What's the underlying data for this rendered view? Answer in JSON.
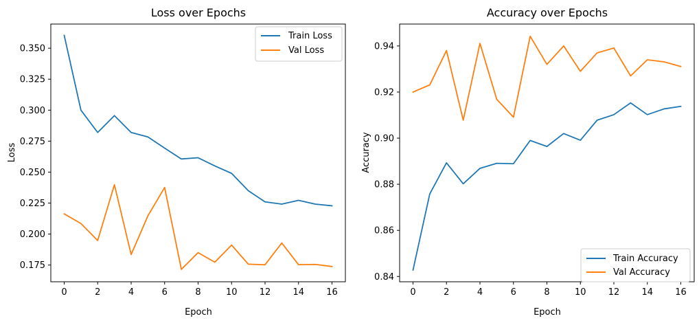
{
  "chart_data": [
    {
      "type": "line",
      "title": "Loss over Epochs",
      "xlabel": "Epoch",
      "ylabel": "Loss",
      "x": [
        0,
        1,
        2,
        3,
        4,
        5,
        6,
        7,
        8,
        9,
        10,
        11,
        12,
        13,
        14,
        15,
        16
      ],
      "xlim": [
        -0.8,
        16.8
      ],
      "ylim": [
        0.1615,
        0.3695
      ],
      "xticks": [
        0,
        2,
        4,
        6,
        8,
        10,
        12,
        14,
        16
      ],
      "xtick_labels": [
        "0",
        "2",
        "4",
        "6",
        "8",
        "10",
        "12",
        "14",
        "16"
      ],
      "yticks": [
        0.175,
        0.2,
        0.225,
        0.25,
        0.275,
        0.3,
        0.325,
        0.35
      ],
      "ytick_labels": [
        "0.175",
        "0.200",
        "0.225",
        "0.250",
        "0.275",
        "0.300",
        "0.325",
        "0.350"
      ],
      "grid": false,
      "legend_position": "upper-right",
      "series": [
        {
          "name": "Train Loss",
          "color": "#1f77b4",
          "values": [
            0.3604,
            0.3,
            0.282,
            0.2956,
            0.282,
            0.2784,
            0.2694,
            0.2606,
            0.2616,
            0.255,
            0.249,
            0.235,
            0.226,
            0.2242,
            0.2272,
            0.2242,
            0.2228
          ]
        },
        {
          "name": "Val Loss",
          "color": "#ff7f0e",
          "values": [
            0.2163,
            0.2085,
            0.1948,
            0.2398,
            0.1835,
            0.2147,
            0.2376,
            0.1715,
            0.185,
            0.1773,
            0.1911,
            0.1757,
            0.1752,
            0.1928,
            0.1753,
            0.1755,
            0.1738
          ]
        }
      ]
    },
    {
      "type": "line",
      "title": "Accuracy over Epochs",
      "xlabel": "Epoch",
      "ylabel": "Accuracy",
      "x": [
        0,
        1,
        2,
        3,
        4,
        5,
        6,
        7,
        8,
        9,
        10,
        11,
        12,
        13,
        14,
        15,
        16
      ],
      "xlim": [
        -0.8,
        16.8
      ],
      "ylim": [
        0.8377,
        0.9495
      ],
      "xticks": [
        0,
        2,
        4,
        6,
        8,
        10,
        12,
        14,
        16
      ],
      "xtick_labels": [
        "0",
        "2",
        "4",
        "6",
        "8",
        "10",
        "12",
        "14",
        "16"
      ],
      "yticks": [
        0.84,
        0.86,
        0.88,
        0.9,
        0.92,
        0.94
      ],
      "ytick_labels": [
        "0.84",
        "0.86",
        "0.88",
        "0.90",
        "0.92",
        "0.94"
      ],
      "grid": false,
      "legend_position": "lower-right",
      "series": [
        {
          "name": "Train Accuracy",
          "color": "#1f77b4",
          "values": [
            0.8428,
            0.8758,
            0.8893,
            0.8802,
            0.8869,
            0.8891,
            0.8889,
            0.899,
            0.8964,
            0.902,
            0.8991,
            0.9078,
            0.9102,
            0.9153,
            0.9102,
            0.9127,
            0.9138
          ]
        },
        {
          "name": "Val Accuracy",
          "color": "#ff7f0e",
          "values": [
            0.92,
            0.9231,
            0.938,
            0.9078,
            0.9411,
            0.9169,
            0.9091,
            0.9442,
            0.932,
            0.94,
            0.929,
            0.937,
            0.9391,
            0.927,
            0.934,
            0.9331,
            0.9311
          ]
        }
      ]
    }
  ]
}
